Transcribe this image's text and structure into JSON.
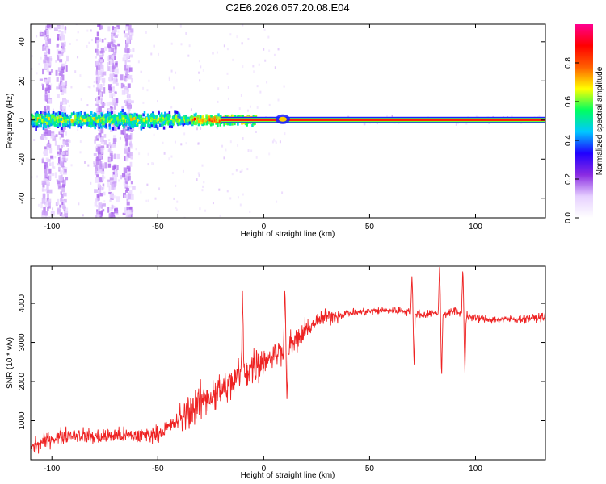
{
  "title": "C2E6.2026.057.20.08.E04",
  "chart_data": [
    {
      "type": "heatmap",
      "title": "C2E6.2026.057.20.08.E04",
      "xlabel": "Height of straight line (km)",
      "ylabel": "Frequency (Hz)",
      "xlim": [
        -110,
        133
      ],
      "ylim": [
        -50,
        49
      ],
      "xticks": [
        -100,
        -50,
        0,
        50,
        100
      ],
      "yticks": [
        -40,
        -20,
        0,
        20,
        40
      ],
      "colorbar": {
        "label": "Normalized spectral amplitude",
        "range": [
          0,
          1
        ],
        "ticks": [
          0.0,
          0.2,
          0.4,
          0.6,
          0.8
        ],
        "colors": [
          "#ffffff",
          "#e6d0ff",
          "#8a2be2",
          "#2000ff",
          "#00c8ff",
          "#00ff60",
          "#ffff00",
          "#ff6000",
          "#ff0000",
          "#ff0090"
        ]
      },
      "features": {
        "carrier_line_freq_hz": 0,
        "carrier_line_start_km": -20,
        "noise_band_start_km": -110,
        "noise_band_end_km": -12,
        "noise_band_halfwidth_hz": 5,
        "speckle_columns_km": [
          -103,
          -96,
          -78,
          -72,
          -65
        ],
        "bump_at_km": 9
      }
    },
    {
      "type": "line",
      "xlabel": "Height of straight line (km)",
      "ylabel": "SNR (10 * v/v)",
      "xlim": [
        -110,
        133
      ],
      "ylim": [
        0,
        4950
      ],
      "xticks": [
        -100,
        -50,
        0,
        50,
        100
      ],
      "yticks": [
        1000,
        2000,
        3000,
        4000
      ],
      "series": [
        {
          "name": "SNR",
          "color": "#ee2222",
          "x": [
            -110,
            -100,
            -90,
            -80,
            -70,
            -60,
            -50,
            -40,
            -30,
            -20,
            -15,
            -10,
            -5,
            0,
            5,
            10,
            15,
            20,
            25,
            30,
            40,
            50,
            60,
            70,
            75,
            80,
            85,
            90,
            95,
            100,
            110,
            120,
            133
          ],
          "y": [
            300,
            550,
            650,
            580,
            620,
            600,
            680,
            1000,
            1500,
            1800,
            1950,
            2250,
            2400,
            2550,
            2700,
            2850,
            3000,
            3300,
            3550,
            3650,
            3750,
            3800,
            3820,
            3800,
            3700,
            3750,
            3720,
            3800,
            3700,
            3620,
            3580,
            3600,
            3650
          ]
        }
      ],
      "spikes": [
        {
          "x": -10,
          "y": 4380
        },
        {
          "x": 10,
          "y": 4500
        },
        {
          "x": 11,
          "y": 1500
        },
        {
          "x": 70,
          "y": 4700
        },
        {
          "x": 71,
          "y": 2350
        },
        {
          "x": 83,
          "y": 4950
        },
        {
          "x": 84,
          "y": 2050
        },
        {
          "x": 94,
          "y": 4930
        },
        {
          "x": 95,
          "y": 2200
        }
      ]
    }
  ]
}
